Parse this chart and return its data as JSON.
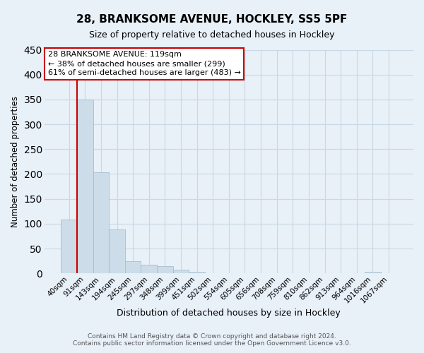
{
  "title1": "28, BRANKSOME AVENUE, HOCKLEY, SS5 5PF",
  "title2": "Size of property relative to detached houses in Hockley",
  "xlabel": "Distribution of detached houses by size in Hockley",
  "ylabel": "Number of detached properties",
  "bar_labels": [
    "40sqm",
    "91sqm",
    "143sqm",
    "194sqm",
    "245sqm",
    "297sqm",
    "348sqm",
    "399sqm",
    "451sqm",
    "502sqm",
    "554sqm",
    "605sqm",
    "656sqm",
    "708sqm",
    "759sqm",
    "810sqm",
    "862sqm",
    "913sqm",
    "964sqm",
    "1016sqm",
    "1067sqm"
  ],
  "bar_values": [
    108,
    350,
    203,
    88,
    24,
    18,
    14,
    7,
    3,
    0,
    0,
    0,
    0,
    0,
    0,
    0,
    0,
    0,
    0,
    3,
    0
  ],
  "bar_color": "#ccdce8",
  "bar_edge_color": "#a8bece",
  "vline_x_index": 1,
  "vline_color": "#cc0000",
  "ylim": [
    0,
    450
  ],
  "yticks": [
    0,
    50,
    100,
    150,
    200,
    250,
    300,
    350,
    400,
    450
  ],
  "annotation_title": "28 BRANKSOME AVENUE: 119sqm",
  "annotation_line1": "← 38% of detached houses are smaller (299)",
  "annotation_line2": "61% of semi-detached houses are larger (483) →",
  "annotation_box_facecolor": "#ffffff",
  "annotation_box_edgecolor": "#cc0000",
  "footer1": "Contains HM Land Registry data © Crown copyright and database right 2024.",
  "footer2": "Contains public sector information licensed under the Open Government Licence v3.0.",
  "grid_color": "#c8d8e4",
  "bg_color": "#e8f0f8",
  "plot_bg_color": "#e8f0f8",
  "title1_fontsize": 11,
  "title2_fontsize": 9,
  "ylabel_fontsize": 8.5,
  "xlabel_fontsize": 9,
  "tick_fontsize": 7.5,
  "annotation_fontsize": 8,
  "footer_fontsize": 6.5
}
